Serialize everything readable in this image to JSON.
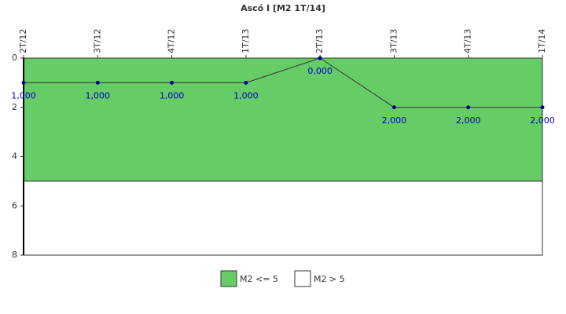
{
  "chart_data": {
    "type": "line",
    "title": "Ascó I [M2 1T/14]",
    "categories": [
      "2T/12",
      "3T/12",
      "4T/12",
      "1T/13",
      "2T/13",
      "3T/13",
      "4T/13",
      "1T/14"
    ],
    "values": [
      1,
      1,
      1,
      1,
      0,
      2,
      2,
      2
    ],
    "value_labels": [
      "1,000",
      "1,000",
      "1,000",
      "1,000",
      "0,000",
      "2,000",
      "2,000",
      "2,000"
    ],
    "color": "#333333",
    "marker_color": "#000099",
    "label_color": "#0000cc",
    "ylim": [
      0,
      8
    ],
    "yticks": [
      0,
      2,
      4,
      6,
      8
    ],
    "y_inverted": true,
    "bands": [
      {
        "name": "M2 <= 5",
        "color": "#66cc66",
        "range": [
          0,
          5
        ]
      },
      {
        "name": "M2 > 5",
        "color": "#ffffff",
        "range": [
          5,
          8
        ]
      }
    ]
  }
}
